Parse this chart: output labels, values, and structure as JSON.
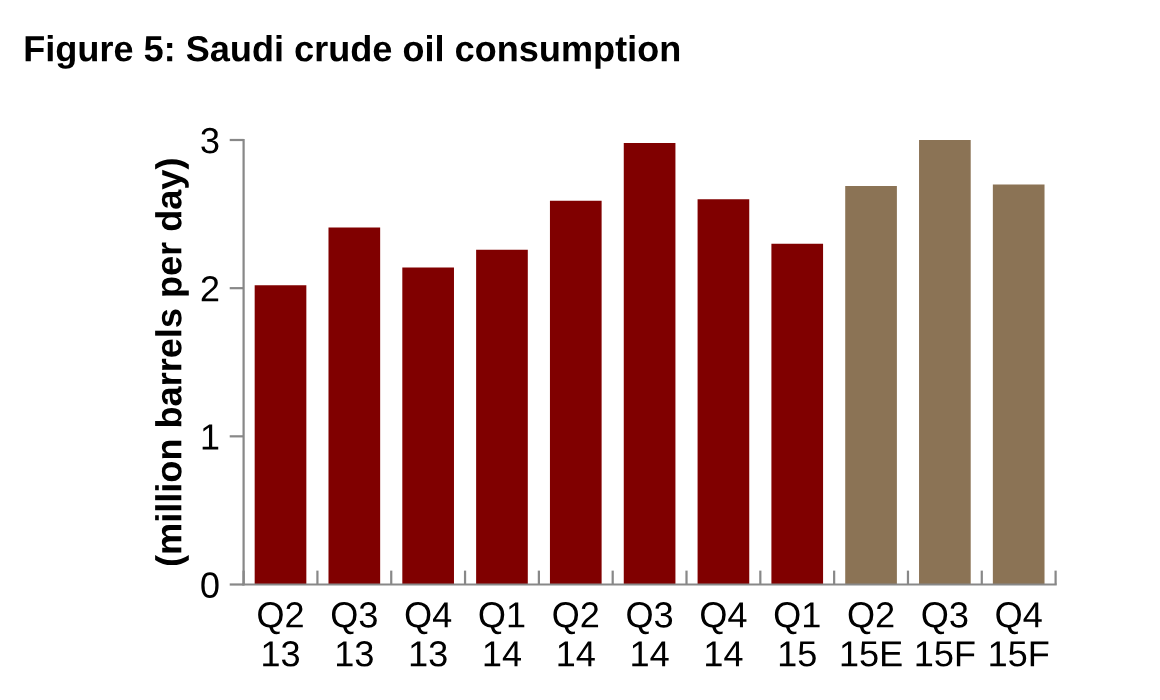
{
  "chart_data": {
    "type": "bar",
    "title": "Figure 5: Saudi crude oil consumption",
    "ylabel": "(million barrels per day)",
    "categories": [
      "Q2\n13",
      "Q3\n13",
      "Q4\n13",
      "Q1\n14",
      "Q2\n14",
      "Q3\n14",
      "Q4\n14",
      "Q1\n15",
      "Q2\n15E",
      "Q3\n15F",
      "Q4\n15F"
    ],
    "values": [
      2.02,
      2.41,
      2.14,
      2.26,
      2.59,
      2.98,
      2.6,
      2.3,
      2.69,
      3.0,
      2.7
    ],
    "colors": [
      "#800000",
      "#800000",
      "#800000",
      "#800000",
      "#800000",
      "#800000",
      "#800000",
      "#800000",
      "#8b7355",
      "#8b7355",
      "#8b7355"
    ],
    "ylim": [
      0,
      3
    ],
    "yticks": [
      0,
      1,
      2,
      3
    ],
    "grid": false,
    "legend": false
  }
}
